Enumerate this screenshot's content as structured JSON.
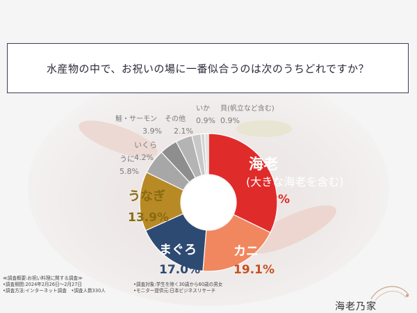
{
  "question": "水産物の中で、お祝いの場に一番似合うのは次のうちどれですか？",
  "footer": {
    "survey_title": "≪調査概要:お祝い料理に関する調査≫",
    "period": "•調査期間:2024年2月26日～2月27日",
    "method": "•調査方法:インターネット調査　•調査人数330人",
    "target": "•調査対象:学生を除く30歳から60歳の男女",
    "provider": "•モニター提供元:日本ビジネスリサーチ"
  },
  "brand": {
    "name": "海老乃家"
  },
  "colors": {
    "question_border": "#3c3c5a",
    "center": "#ffffff"
  },
  "chart_data": {
    "type": "pie",
    "unit": "%",
    "slices": [
      {
        "label": "海老",
        "sublabel": "(大きな海老を含む)",
        "value": 32.2,
        "color": "#e02b2b",
        "label_color": "#ffffff"
      },
      {
        "label": "カニ",
        "value": 19.1,
        "color": "#f0875f",
        "label_color": "#ffffff"
      },
      {
        "label": "まぐろ",
        "value": 17.0,
        "color": "#2d4a72",
        "label_color": "#ffffff"
      },
      {
        "label": "うなぎ",
        "value": 13.9,
        "color": "#b88a26",
        "label_color": "#ffffff"
      },
      {
        "label": "うに",
        "value": 5.8,
        "color": "#a7a7a7",
        "label_color": "#7a7a7a"
      },
      {
        "label": "いくら",
        "value": 4.2,
        "color": "#8e8e8e",
        "label_color": "#7a7a7a"
      },
      {
        "label": "鮭・サーモン",
        "value": 3.9,
        "color": "#b4b4b4",
        "label_color": "#7a7a7a"
      },
      {
        "label": "その他",
        "value": 2.1,
        "color": "#c8c8c8",
        "label_color": "#7a7a7a"
      },
      {
        "label": "いか",
        "value": 0.9,
        "color": "#d4d4d4",
        "label_color": "#7a7a7a"
      },
      {
        "label": "貝(帆立など含む)",
        "value": 0.9,
        "color": "#e0e0e0",
        "label_color": "#7a7a7a"
      }
    ]
  }
}
